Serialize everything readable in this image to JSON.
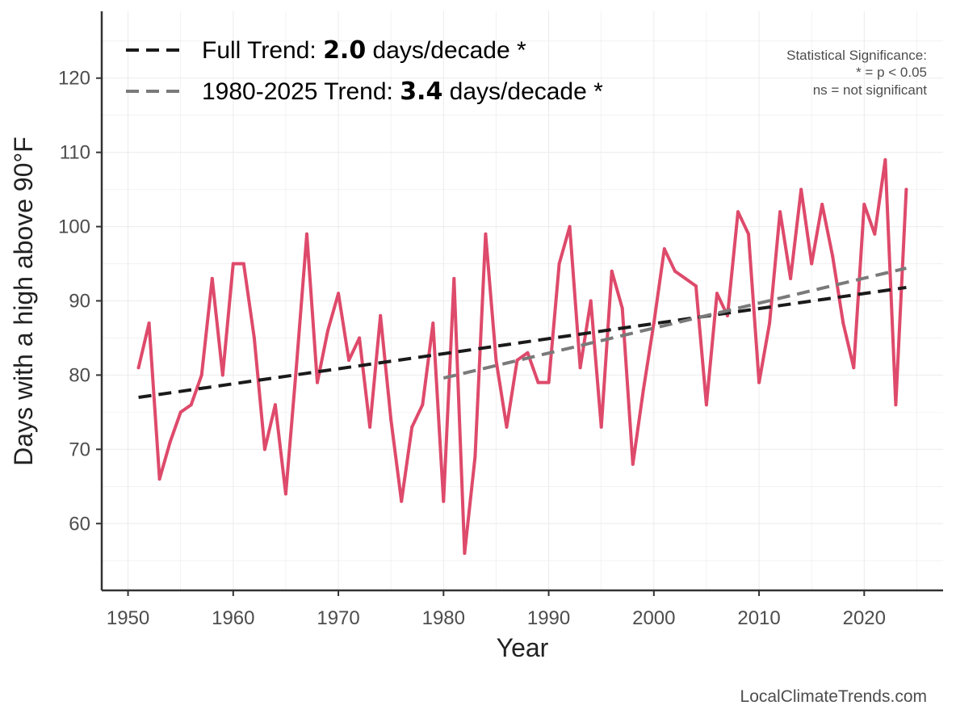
{
  "chart_data": {
    "type": "line",
    "title": "",
    "xlabel": "Year",
    "ylabel": "Days with a high above 90°F",
    "xlim": [
      1947.5,
      2027.5
    ],
    "ylim": [
      51,
      129
    ],
    "xticks": [
      1950,
      1960,
      1970,
      1980,
      1990,
      2000,
      2010,
      2020
    ],
    "yticks": [
      60,
      70,
      80,
      90,
      100,
      110,
      120
    ],
    "grid": true,
    "series": [
      {
        "name": "Days above 90°F",
        "color": "#de4a6b",
        "x": [
          1951,
          1952,
          1953,
          1954,
          1955,
          1956,
          1957,
          1958,
          1959,
          1960,
          1961,
          1962,
          1963,
          1964,
          1965,
          1966,
          1967,
          1968,
          1969,
          1970,
          1971,
          1972,
          1973,
          1974,
          1975,
          1976,
          1977,
          1978,
          1979,
          1980,
          1981,
          1982,
          1983,
          1984,
          1985,
          1986,
          1987,
          1988,
          1989,
          1990,
          1991,
          1992,
          1993,
          1994,
          1995,
          1996,
          1997,
          1998,
          1999,
          2000,
          2001,
          2002,
          2003,
          2004,
          2005,
          2006,
          2007,
          2008,
          2009,
          2010,
          2011,
          2012,
          2013,
          2014,
          2015,
          2016,
          2017,
          2018,
          2019,
          2020,
          2021,
          2022,
          2023,
          2024
        ],
        "values": [
          81,
          87,
          66,
          71,
          75,
          76,
          80,
          93,
          80,
          95,
          95,
          85,
          70,
          76,
          64,
          81,
          99,
          79,
          86,
          91,
          82,
          85,
          73,
          88,
          74,
          63,
          73,
          76,
          87,
          63,
          93,
          56,
          69,
          99,
          82,
          73,
          82,
          83,
          79,
          79,
          95,
          100,
          81,
          90,
          73,
          94,
          89,
          68,
          78,
          87,
          97,
          94,
          93,
          92,
          76,
          91,
          88,
          102,
          99,
          79,
          87,
          102,
          93,
          105,
          95,
          103,
          96,
          87,
          81,
          103,
          99,
          109,
          76,
          105
        ]
      }
    ],
    "trend_lines": [
      {
        "name": "Full Trend",
        "color": "#1a1a1a",
        "x": [
          1951,
          2024
        ],
        "values": [
          77.0,
          91.8
        ]
      },
      {
        "name": "1980-2025 Trend",
        "color": "#7a7a7a",
        "x": [
          1980,
          2024
        ],
        "values": [
          79.6,
          94.4
        ]
      }
    ],
    "legend": {
      "position": "top-left",
      "entries": [
        {
          "prefix": "Full Trend: ",
          "value": "2.0",
          "suffix": " days/decade *"
        },
        {
          "prefix": "1980-2025 Trend: ",
          "value": "3.4",
          "suffix": " days/decade *"
        }
      ]
    },
    "annotations": {
      "significance": [
        "Statistical Significance:",
        "* = p < 0.05",
        "ns = not significant"
      ],
      "source": "LocalClimateTrends.com"
    }
  }
}
